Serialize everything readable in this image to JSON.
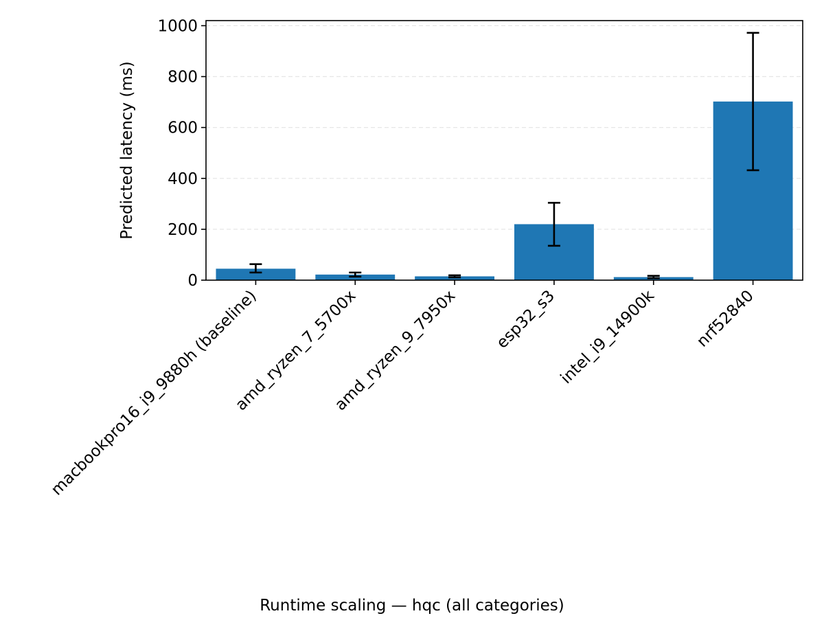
{
  "chart_data": {
    "type": "bar",
    "title": "",
    "xlabel": "",
    "ylabel": "Predicted latency (ms)",
    "caption": "Runtime scaling — hqc (all categories)",
    "categories": [
      "macbookpro16_i9_9880h (baseline)",
      "amd_ryzen_7_5700x",
      "amd_ryzen_9_7950x",
      "esp32_s3",
      "intel_i9_14900k",
      "nrf52840"
    ],
    "values": [
      45,
      22,
      15,
      220,
      12,
      702
    ],
    "error_low": [
      30,
      14,
      11,
      135,
      8,
      432
    ],
    "error_high": [
      63,
      30,
      19,
      304,
      17,
      972
    ],
    "ylim": [
      0,
      1020
    ],
    "yticks": [
      0,
      200,
      400,
      600,
      800,
      1000
    ],
    "grid": "y-dashed",
    "legend": "none",
    "colors": {
      "bar": "#1f77b4",
      "error_bar": "#000000",
      "grid": "#e6e6e6",
      "axis": "#000000"
    }
  }
}
